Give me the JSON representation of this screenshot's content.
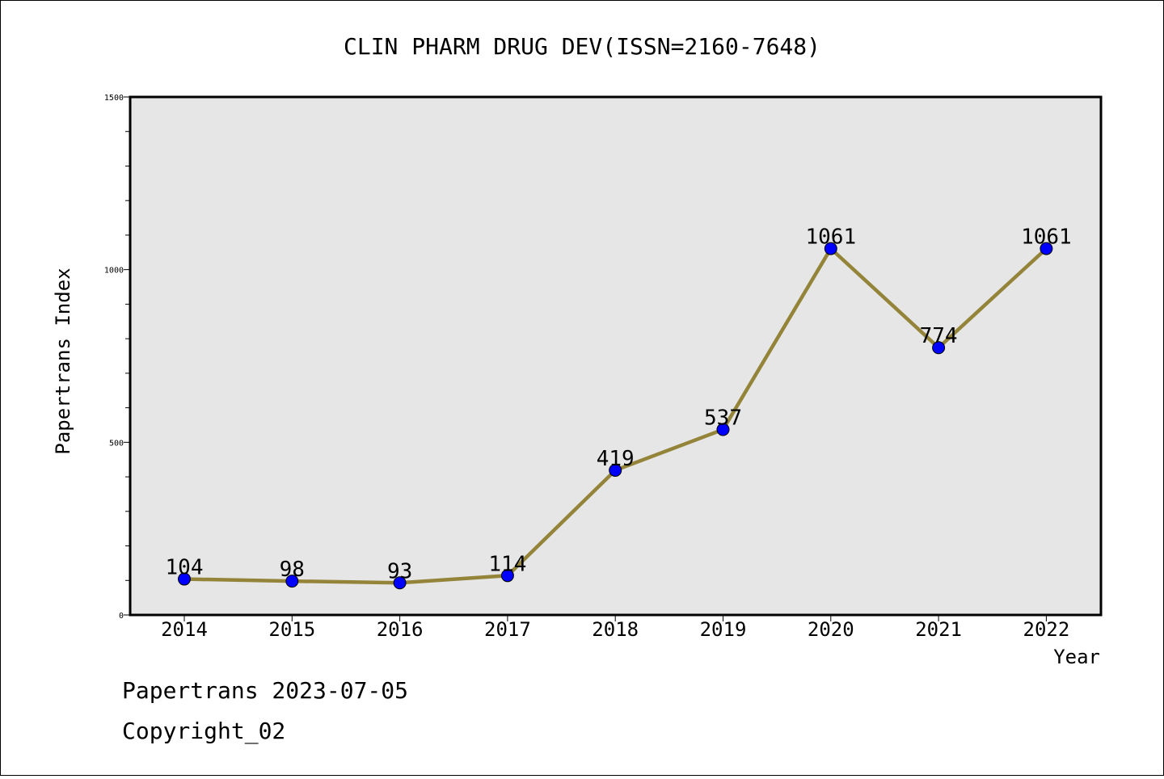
{
  "chart_data": {
    "type": "line",
    "title": "CLIN PHARM DRUG DEV(ISSN=2160-7648)",
    "xlabel": "Year",
    "ylabel": "Papertrans Index",
    "categories": [
      "2014",
      "2015",
      "2016",
      "2017",
      "2018",
      "2019",
      "2020",
      "2021",
      "2022"
    ],
    "values": [
      104,
      98,
      93,
      114,
      419,
      537,
      1061,
      774,
      1061
    ],
    "yticks": [
      0,
      500,
      1000,
      1500
    ],
    "ylim": [
      0,
      1500
    ],
    "grid": false,
    "background": "#e6e6e6",
    "line_color": "#948439",
    "marker_color": "#0000ff"
  },
  "footer": {
    "line1": "Papertrans 2023-07-05",
    "line2": "Copyright_02"
  }
}
